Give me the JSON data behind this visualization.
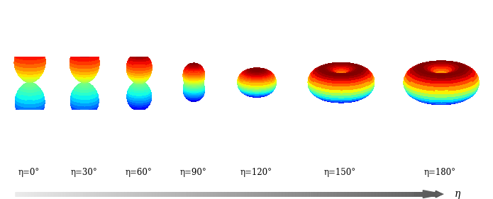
{
  "etas_deg": [
    0,
    30,
    60,
    90,
    120,
    150,
    180
  ],
  "labels": [
    "η=0°",
    "η=30°",
    "η=60°",
    "η=90°",
    "η=120°",
    "η=150°",
    "η=180°"
  ],
  "background_color": "#ffffff",
  "arrow_color": "#888888",
  "label_fontsize": 8.5,
  "eta_label": "η",
  "fig_width": 6.95,
  "fig_height": 2.81,
  "n_theta": 40,
  "n_phi": 40,
  "b2_s": 2.0,
  "b2_p": -1.0,
  "elev": 20,
  "azim": -65
}
